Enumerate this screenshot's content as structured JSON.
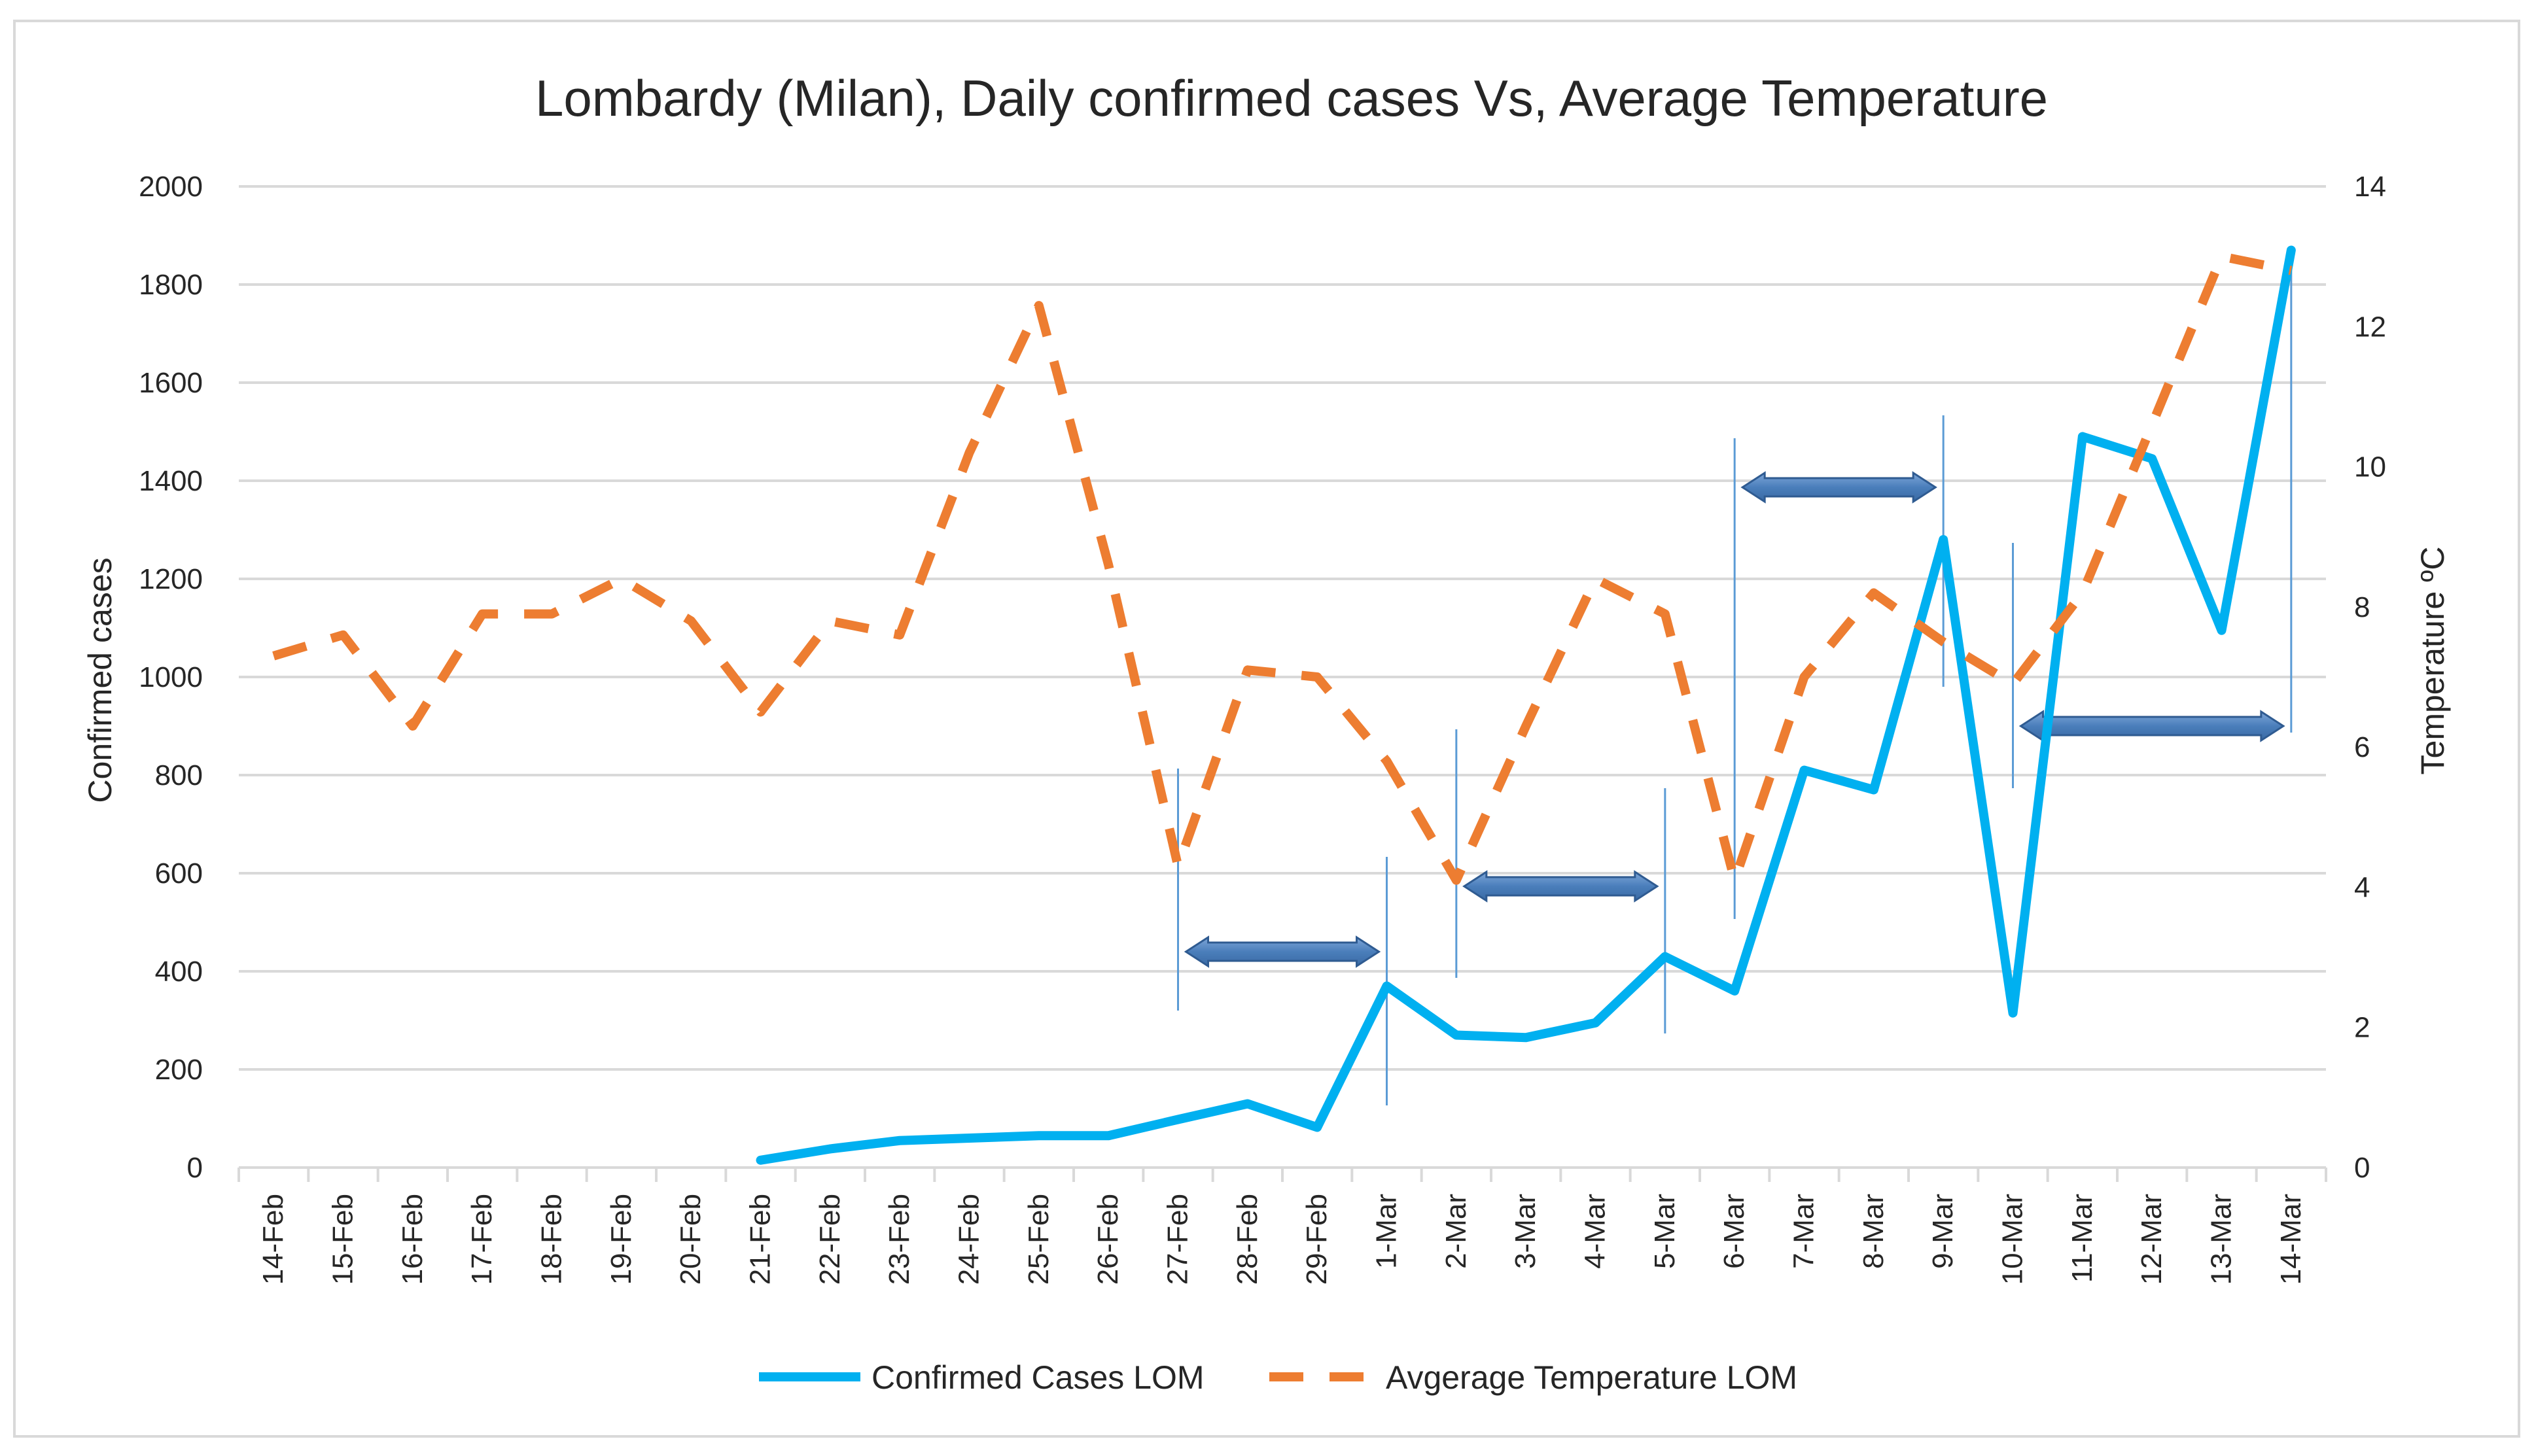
{
  "chart_data": {
    "type": "line",
    "title": "Lombardy (Milan), Daily confirmed cases Vs, Average Temperature",
    "xlabel": "",
    "ylabel": "Confirmed cases",
    "y2label": "Temperature ºC",
    "ylim": [
      0,
      2000
    ],
    "y2lim": [
      0,
      14
    ],
    "yticks": [
      "0",
      "200",
      "400",
      "600",
      "800",
      "1000",
      "1200",
      "1400",
      "1600",
      "1800",
      "2000"
    ],
    "y2ticks": [
      "0",
      "2",
      "4",
      "6",
      "8",
      "10",
      "12",
      "14"
    ],
    "categories": [
      "14-Feb",
      "15-Feb",
      "16-Feb",
      "17-Feb",
      "18-Feb",
      "19-Feb",
      "20-Feb",
      "21-Feb",
      "22-Feb",
      "23-Feb",
      "24-Feb",
      "25-Feb",
      "26-Feb",
      "27-Feb",
      "28-Feb",
      "29-Feb",
      "1-Mar",
      "2-Mar",
      "3-Mar",
      "4-Mar",
      "5-Mar",
      "6-Mar",
      "7-Mar",
      "8-Mar",
      "9-Mar",
      "10-Mar",
      "11-Mar",
      "12-Mar",
      "13-Mar",
      "14-Mar"
    ],
    "series": [
      {
        "name": "Confirmed Cases LOM",
        "axis": "left",
        "color": "#00b0f0",
        "style": "solid",
        "values": [
          null,
          null,
          null,
          null,
          null,
          null,
          null,
          15,
          38,
          55,
          60,
          65,
          65,
          98,
          130,
          82,
          370,
          270,
          265,
          295,
          430,
          360,
          810,
          770,
          1280,
          315,
          1490,
          1445,
          1095,
          1870
        ]
      },
      {
        "name": "Avgerage Temperature LOM",
        "axis": "right",
        "color": "#ed7d31",
        "style": "dashed",
        "values": [
          7.3,
          7.6,
          6.3,
          7.9,
          7.9,
          8.4,
          7.8,
          6.5,
          7.8,
          7.6,
          10.2,
          12.3,
          8.6,
          4.3,
          7.1,
          7.0,
          5.8,
          4.1,
          6.3,
          8.4,
          7.9,
          4.1,
          7.0,
          8.2,
          7.5,
          6.9,
          8.2,
          10.6,
          13.0,
          12.8
        ]
      }
    ],
    "annotations": [
      {
        "type": "double-arrow",
        "from": "27-Feb",
        "to": "1-Mar",
        "color": "#4f81bd"
      },
      {
        "type": "double-arrow",
        "from": "2-Mar",
        "to": "5-Mar",
        "color": "#4f81bd"
      },
      {
        "type": "double-arrow",
        "from": "6-Mar",
        "to": "9-Mar",
        "color": "#4f81bd"
      },
      {
        "type": "double-arrow",
        "from": "10-Mar",
        "to": "14-Mar",
        "color": "#4f81bd"
      }
    ],
    "legend_position": "bottom",
    "grid": true
  }
}
